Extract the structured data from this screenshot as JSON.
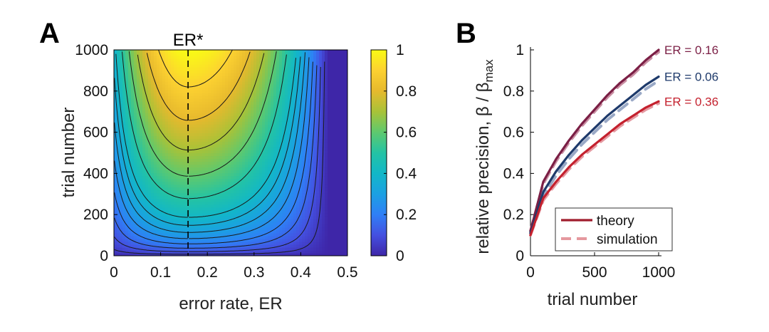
{
  "panel_a": {
    "letter": "A",
    "marker_label": "ER*",
    "colorbar_ticks": [
      "0",
      "0.2",
      "0.4",
      "0.6",
      "0.8",
      "1"
    ]
  },
  "panel_b": {
    "letter": "B"
  },
  "chart_data": [
    {
      "type": "heatmap",
      "panel": "A",
      "title": "",
      "xlabel": "error rate, ER",
      "ylabel": "trial number",
      "xlim": [
        0,
        0.5
      ],
      "ylim": [
        0,
        1000
      ],
      "xticks": [
        "0",
        "0.1",
        "0.2",
        "0.3",
        "0.4",
        "0.5"
      ],
      "yticks": [
        "0",
        "200",
        "400",
        "600",
        "800",
        "1000"
      ],
      "value": "relative precision (normalized 0-1)",
      "optimal_error_rate": 0.1587,
      "contour_levels": [
        0.05,
        0.1,
        0.15,
        0.2,
        0.25,
        0.3,
        0.35,
        0.4,
        0.5,
        0.6,
        0.7,
        0.8,
        0.9
      ],
      "colorbar": {
        "min": 0,
        "max": 1,
        "ticks": [
          0,
          0.2,
          0.4,
          0.6,
          0.8,
          1
        ]
      },
      "colormap": [
        "#3e26a8",
        "#4450e0",
        "#2f7ff6",
        "#1ba0e2",
        "#12b7c7",
        "#24c3a4",
        "#5ec96e",
        "#a8c238",
        "#e6b92d",
        "#fcd131",
        "#f9fb15"
      ]
    },
    {
      "type": "line",
      "panel": "B",
      "title": "",
      "xlabel": "trial number",
      "ylabel": "relative precision, β / β",
      "ylabel_subscript": "max",
      "xlim": [
        0,
        1000
      ],
      "ylim": [
        0,
        1
      ],
      "xticks": [
        "0",
        "500",
        "1000"
      ],
      "yticks": [
        "0",
        "0.2",
        "0.4",
        "0.6",
        "0.8",
        "1"
      ],
      "x": [
        0,
        100,
        200,
        300,
        400,
        500,
        600,
        700,
        800,
        900,
        1000
      ],
      "series": [
        {
          "name": "ER = 0.16",
          "style": "theory",
          "color": "#7b1f45",
          "values": [
            0.12,
            0.36,
            0.47,
            0.56,
            0.64,
            0.71,
            0.78,
            0.84,
            0.89,
            0.95,
            1.0
          ]
        },
        {
          "name": "ER = 0.16 (simulation)",
          "style": "simulation",
          "color": "#c98ea2",
          "values": [
            0.12,
            0.35,
            0.46,
            0.55,
            0.63,
            0.7,
            0.77,
            0.83,
            0.88,
            0.94,
            0.99
          ]
        },
        {
          "name": "ER = 0.06",
          "style": "theory",
          "color": "#1e3a6b",
          "values": [
            0.11,
            0.31,
            0.41,
            0.49,
            0.56,
            0.62,
            0.68,
            0.73,
            0.78,
            0.83,
            0.87
          ]
        },
        {
          "name": "ER = 0.06 (simulation)",
          "style": "simulation",
          "color": "#9aa9c6",
          "values": [
            0.11,
            0.29,
            0.39,
            0.47,
            0.54,
            0.6,
            0.66,
            0.71,
            0.76,
            0.81,
            0.85
          ]
        },
        {
          "name": "ER = 0.36",
          "style": "theory",
          "color": "#c4212e",
          "values": [
            0.1,
            0.28,
            0.36,
            0.43,
            0.49,
            0.54,
            0.59,
            0.64,
            0.68,
            0.72,
            0.75
          ]
        },
        {
          "name": "ER = 0.36 (simulation)",
          "style": "simulation",
          "color": "#e59aa2",
          "values": [
            0.1,
            0.27,
            0.35,
            0.42,
            0.48,
            0.53,
            0.58,
            0.63,
            0.67,
            0.71,
            0.74
          ]
        }
      ],
      "series_labels": [
        {
          "text": "ER = 0.16",
          "color": "#7b1f45",
          "y": 1.0
        },
        {
          "text": "ER = 0.06",
          "color": "#1e3a6b",
          "y": 0.87
        },
        {
          "text": "ER = 0.36",
          "color": "#c4212e",
          "y": 0.75
        }
      ],
      "legend": {
        "placement": "bottom-right",
        "entries": [
          {
            "label": "theory",
            "style": "solid",
            "color": "#a01c2c"
          },
          {
            "label": "simulation",
            "style": "dashed",
            "color": "#e5989e"
          }
        ]
      }
    }
  ]
}
